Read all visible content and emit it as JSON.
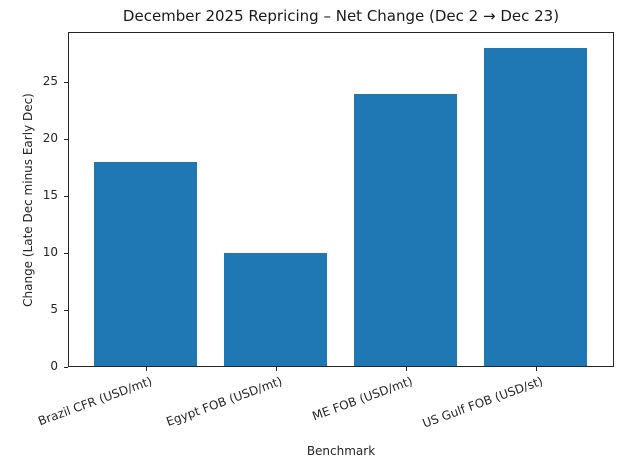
{
  "chart_data": {
    "type": "bar",
    "title": "December 2025 Repricing – Net Change (Dec 2 → Dec 23)",
    "xlabel": "Benchmark",
    "ylabel": "Change (Late Dec minus Early Dec)",
    "categories": [
      "Brazil CFR (USD/mt)",
      "Egypt FOB (USD/mt)",
      "ME FOB (USD/mt)",
      "US Gulf FOB (USD/st)"
    ],
    "values": [
      18,
      10,
      24,
      28
    ],
    "ylim": [
      0,
      29.4
    ],
    "yticks": [
      0,
      5,
      10,
      15,
      20,
      25
    ],
    "grid": false,
    "bar_color": "#1f77b4"
  }
}
